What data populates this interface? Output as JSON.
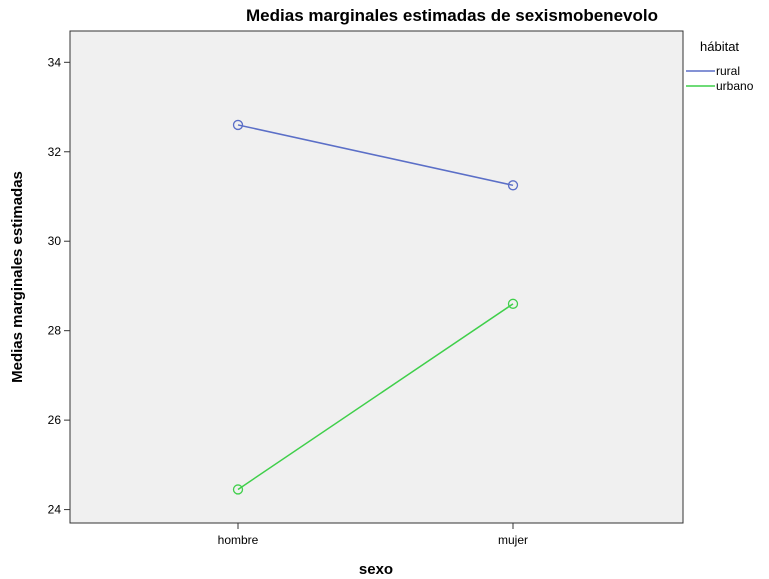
{
  "chart_data": {
    "type": "line",
    "title": "Medias marginales estimadas de sexismobenevolo",
    "xlabel": "sexo",
    "ylabel": "Medias marginales estimadas",
    "categories": [
      "hombre",
      "mujer"
    ],
    "ylim": [
      23.7,
      34.7
    ],
    "yticks": [
      24,
      26,
      28,
      30,
      32,
      34
    ],
    "legend": {
      "title": "hábitat",
      "position": "top-right, outside plot"
    },
    "grid": false,
    "series": [
      {
        "name": "rural",
        "values": [
          32.6,
          31.25
        ],
        "color": "#5b6fc7"
      },
      {
        "name": "urbano",
        "values": [
          24.45,
          28.6
        ],
        "color": "#3fcf4a"
      }
    ]
  }
}
